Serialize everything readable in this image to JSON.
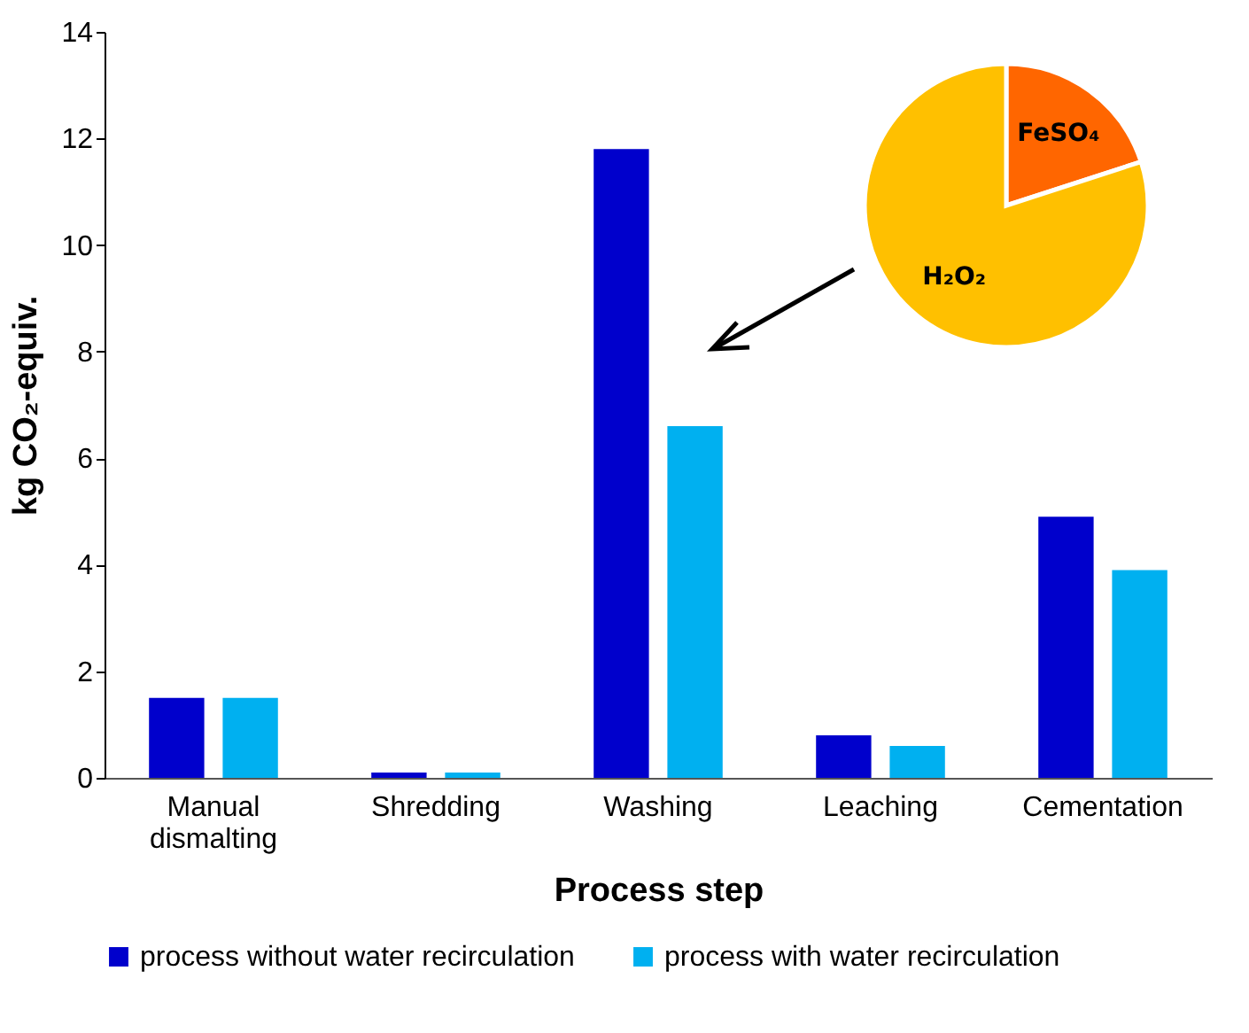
{
  "chart_data": [
    {
      "type": "bar",
      "xlabel": "Process step",
      "ylabel": "kg CO₂-equiv.",
      "categories": [
        "Manual dismalting",
        "Shredding",
        "Washing",
        "Leaching",
        "Cementation"
      ],
      "series": [
        {
          "name": "process without water recirculation",
          "color": "#0000cc",
          "values": [
            1.5,
            0.1,
            11.8,
            0.8,
            4.9
          ]
        },
        {
          "name": "process with water recirculation",
          "color": "#00b0f0",
          "values": [
            1.5,
            0.1,
            6.6,
            0.6,
            3.9
          ]
        }
      ],
      "ylim": [
        0,
        14
      ],
      "yticks": [
        0,
        2,
        4,
        6,
        8,
        10,
        12,
        14
      ],
      "legend": "bottom"
    },
    {
      "type": "pie",
      "categories": [
        "FeSO₄",
        "H₂O₂"
      ],
      "values": [
        20,
        80
      ],
      "colors": [
        "#ff6600",
        "#ffc000"
      ]
    }
  ]
}
